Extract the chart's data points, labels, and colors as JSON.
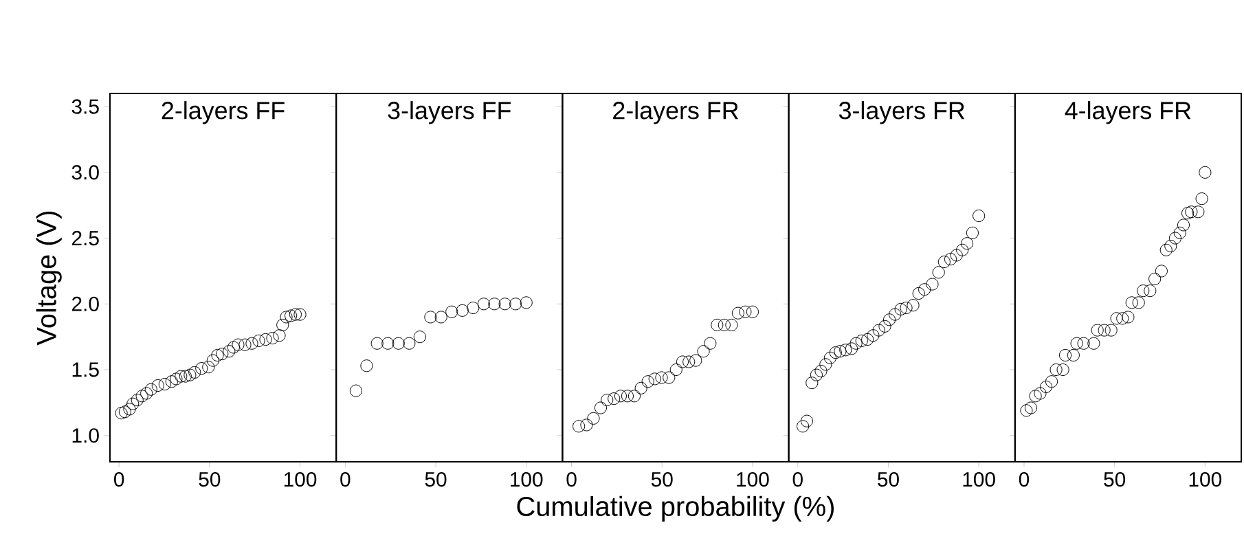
{
  "chart_data": [
    {
      "type": "scatter",
      "title": "2-layers FF",
      "ylabel": "Voltage (V)",
      "marker": "circle",
      "xlim": [
        -5,
        120
      ],
      "ylim": [
        0.8,
        3.6
      ],
      "xticks": [
        0,
        50,
        100
      ],
      "yticks": [
        {
          "value": 1.0,
          "label": "1.0"
        },
        {
          "value": 1.5,
          "label": "1.5"
        },
        {
          "value": 2.0,
          "label": "2.0"
        },
        {
          "value": 2.5,
          "label": "2.5"
        },
        {
          "value": 3.0,
          "label": "3.0"
        },
        {
          "value": 3.5,
          "label": "3.5"
        }
      ],
      "x": [
        1.3,
        3.3,
        5.8,
        7.6,
        10.1,
        12.7,
        15.2,
        17.7,
        21.5,
        25.3,
        29.1,
        31.6,
        34.2,
        36.7,
        39.2,
        41.8,
        45.6,
        49.4,
        51.9,
        54.4,
        57.0,
        60.8,
        63.3,
        65.8,
        69.6,
        73.4,
        77.2,
        81.0,
        84.8,
        88.6,
        90.4,
        92.4,
        94.9,
        97.5,
        100
      ],
      "values": [
        1.17,
        1.18,
        1.2,
        1.24,
        1.27,
        1.3,
        1.32,
        1.35,
        1.38,
        1.39,
        1.41,
        1.43,
        1.45,
        1.45,
        1.46,
        1.48,
        1.51,
        1.52,
        1.57,
        1.61,
        1.62,
        1.64,
        1.67,
        1.69,
        1.69,
        1.7,
        1.72,
        1.73,
        1.74,
        1.76,
        1.84,
        1.9,
        1.91,
        1.92,
        1.92
      ],
      "color": "#000000"
    },
    {
      "type": "scatter",
      "title": "3-layers FF",
      "tick_labels": "x",
      "marker": "circle",
      "xlim": [
        -5,
        120
      ],
      "ylim": [
        0.8,
        3.6
      ],
      "xticks": [
        0,
        50,
        100
      ],
      "yticks": [
        {
          "value": 1.0,
          "label": null
        },
        {
          "value": 1.5,
          "label": null
        },
        {
          "value": 2.0,
          "label": null
        },
        {
          "value": 2.5,
          "label": null
        },
        {
          "value": 3.0,
          "label": null
        },
        {
          "value": 3.5,
          "label": null
        }
      ],
      "x": [
        5.9,
        11.8,
        17.6,
        23.5,
        29.4,
        35.3,
        41.2,
        47.1,
        52.9,
        58.8,
        64.7,
        70.6,
        76.5,
        82.4,
        88.2,
        94.1,
        100
      ],
      "values": [
        1.34,
        1.53,
        1.7,
        1.7,
        1.7,
        1.7,
        1.75,
        1.9,
        1.9,
        1.94,
        1.95,
        1.97,
        2.0,
        2.0,
        2.0,
        2.0,
        2.01
      ],
      "color": "#000000"
    },
    {
      "type": "scatter",
      "title": "2-layers FR",
      "xlabel": "Cumulative probability (%)",
      "tick_labels": "x",
      "marker": "circle",
      "xlim": [
        -5,
        120
      ],
      "ylim": [
        0.8,
        3.6
      ],
      "xticks": [
        0,
        50,
        100
      ],
      "yticks": [
        {
          "value": 1.0,
          "label": null
        },
        {
          "value": 1.5,
          "label": null
        },
        {
          "value": 2.0,
          "label": null
        },
        {
          "value": 2.5,
          "label": null
        },
        {
          "value": 3.0,
          "label": null
        },
        {
          "value": 3.5,
          "label": null
        }
      ],
      "x": [
        4.0,
        8.3,
        12.1,
        16.1,
        19.6,
        23.4,
        27.1,
        30.9,
        34.7,
        38.4,
        42.2,
        46.0,
        49.7,
        53.8,
        57.8,
        61.3,
        64.8,
        68.6,
        72.9,
        76.6,
        80.4,
        84.4,
        88.4,
        92.0,
        96.0,
        100
      ],
      "values": [
        1.07,
        1.08,
        1.13,
        1.21,
        1.27,
        1.28,
        1.3,
        1.3,
        1.3,
        1.36,
        1.41,
        1.43,
        1.44,
        1.44,
        1.5,
        1.56,
        1.56,
        1.57,
        1.64,
        1.7,
        1.84,
        1.84,
        1.84,
        1.93,
        1.94,
        1.94
      ],
      "color": "#000000"
    },
    {
      "type": "scatter",
      "title": "3-layers FR",
      "tick_labels": "x",
      "marker": "circle",
      "xlim": [
        -5,
        120
      ],
      "ylim": [
        0.8,
        3.6
      ],
      "xticks": [
        0,
        50,
        100
      ],
      "yticks": [
        {
          "value": 1.0,
          "label": null
        },
        {
          "value": 1.5,
          "label": null
        },
        {
          "value": 2.0,
          "label": null
        },
        {
          "value": 2.5,
          "label": null
        },
        {
          "value": 3.0,
          "label": null
        },
        {
          "value": 3.5,
          "label": null
        }
      ],
      "x": [
        2.8,
        5.0,
        7.8,
        10.3,
        12.8,
        15.4,
        17.9,
        20.9,
        23.4,
        26.4,
        29.7,
        32.2,
        35.3,
        38.5,
        41.6,
        44.8,
        48.1,
        50.6,
        53.7,
        56.9,
        59.9,
        63.7,
        66.8,
        70.0,
        74.3,
        77.8,
        80.9,
        84.4,
        87.7,
        90.9,
        93.5,
        96.5,
        100
      ],
      "values": [
        1.07,
        1.11,
        1.4,
        1.46,
        1.49,
        1.54,
        1.59,
        1.63,
        1.64,
        1.65,
        1.66,
        1.7,
        1.72,
        1.73,
        1.76,
        1.8,
        1.83,
        1.88,
        1.92,
        1.96,
        1.97,
        1.99,
        2.08,
        2.11,
        2.15,
        2.24,
        2.32,
        2.34,
        2.37,
        2.41,
        2.46,
        2.54,
        2.67
      ],
      "color": "#000000"
    },
    {
      "type": "scatter",
      "title": "4-layers FR",
      "tick_labels": "x",
      "marker": "circle",
      "xlim": [
        -5,
        120
      ],
      "ylim": [
        0.8,
        3.6
      ],
      "xticks": [
        0,
        50,
        100
      ],
      "yticks": [
        {
          "value": 1.0,
          "label": null
        },
        {
          "value": 1.5,
          "label": null
        },
        {
          "value": 2.0,
          "label": null
        },
        {
          "value": 2.5,
          "label": null
        },
        {
          "value": 3.0,
          "label": null
        },
        {
          "value": 3.5,
          "label": null
        }
      ],
      "x": [
        1.3,
        3.8,
        6.3,
        8.9,
        12.2,
        15.2,
        17.7,
        21.5,
        22.8,
        27.3,
        29.1,
        32.9,
        38.5,
        40.5,
        44.3,
        48.1,
        51.1,
        54.4,
        57.5,
        59.5,
        63.3,
        65.8,
        69.6,
        72.2,
        75.9,
        78.5,
        81.0,
        83.5,
        86.1,
        88.1,
        90.4,
        92.4,
        96.2,
        98.2,
        100
      ],
      "values": [
        1.19,
        1.21,
        1.3,
        1.32,
        1.37,
        1.41,
        1.5,
        1.5,
        1.61,
        1.61,
        1.7,
        1.7,
        1.7,
        1.8,
        1.8,
        1.8,
        1.89,
        1.89,
        1.9,
        2.01,
        2.01,
        2.1,
        2.1,
        2.19,
        2.25,
        2.41,
        2.44,
        2.5,
        2.54,
        2.6,
        2.69,
        2.7,
        2.7,
        2.8,
        3.0
      ],
      "color": "#000000"
    }
  ]
}
